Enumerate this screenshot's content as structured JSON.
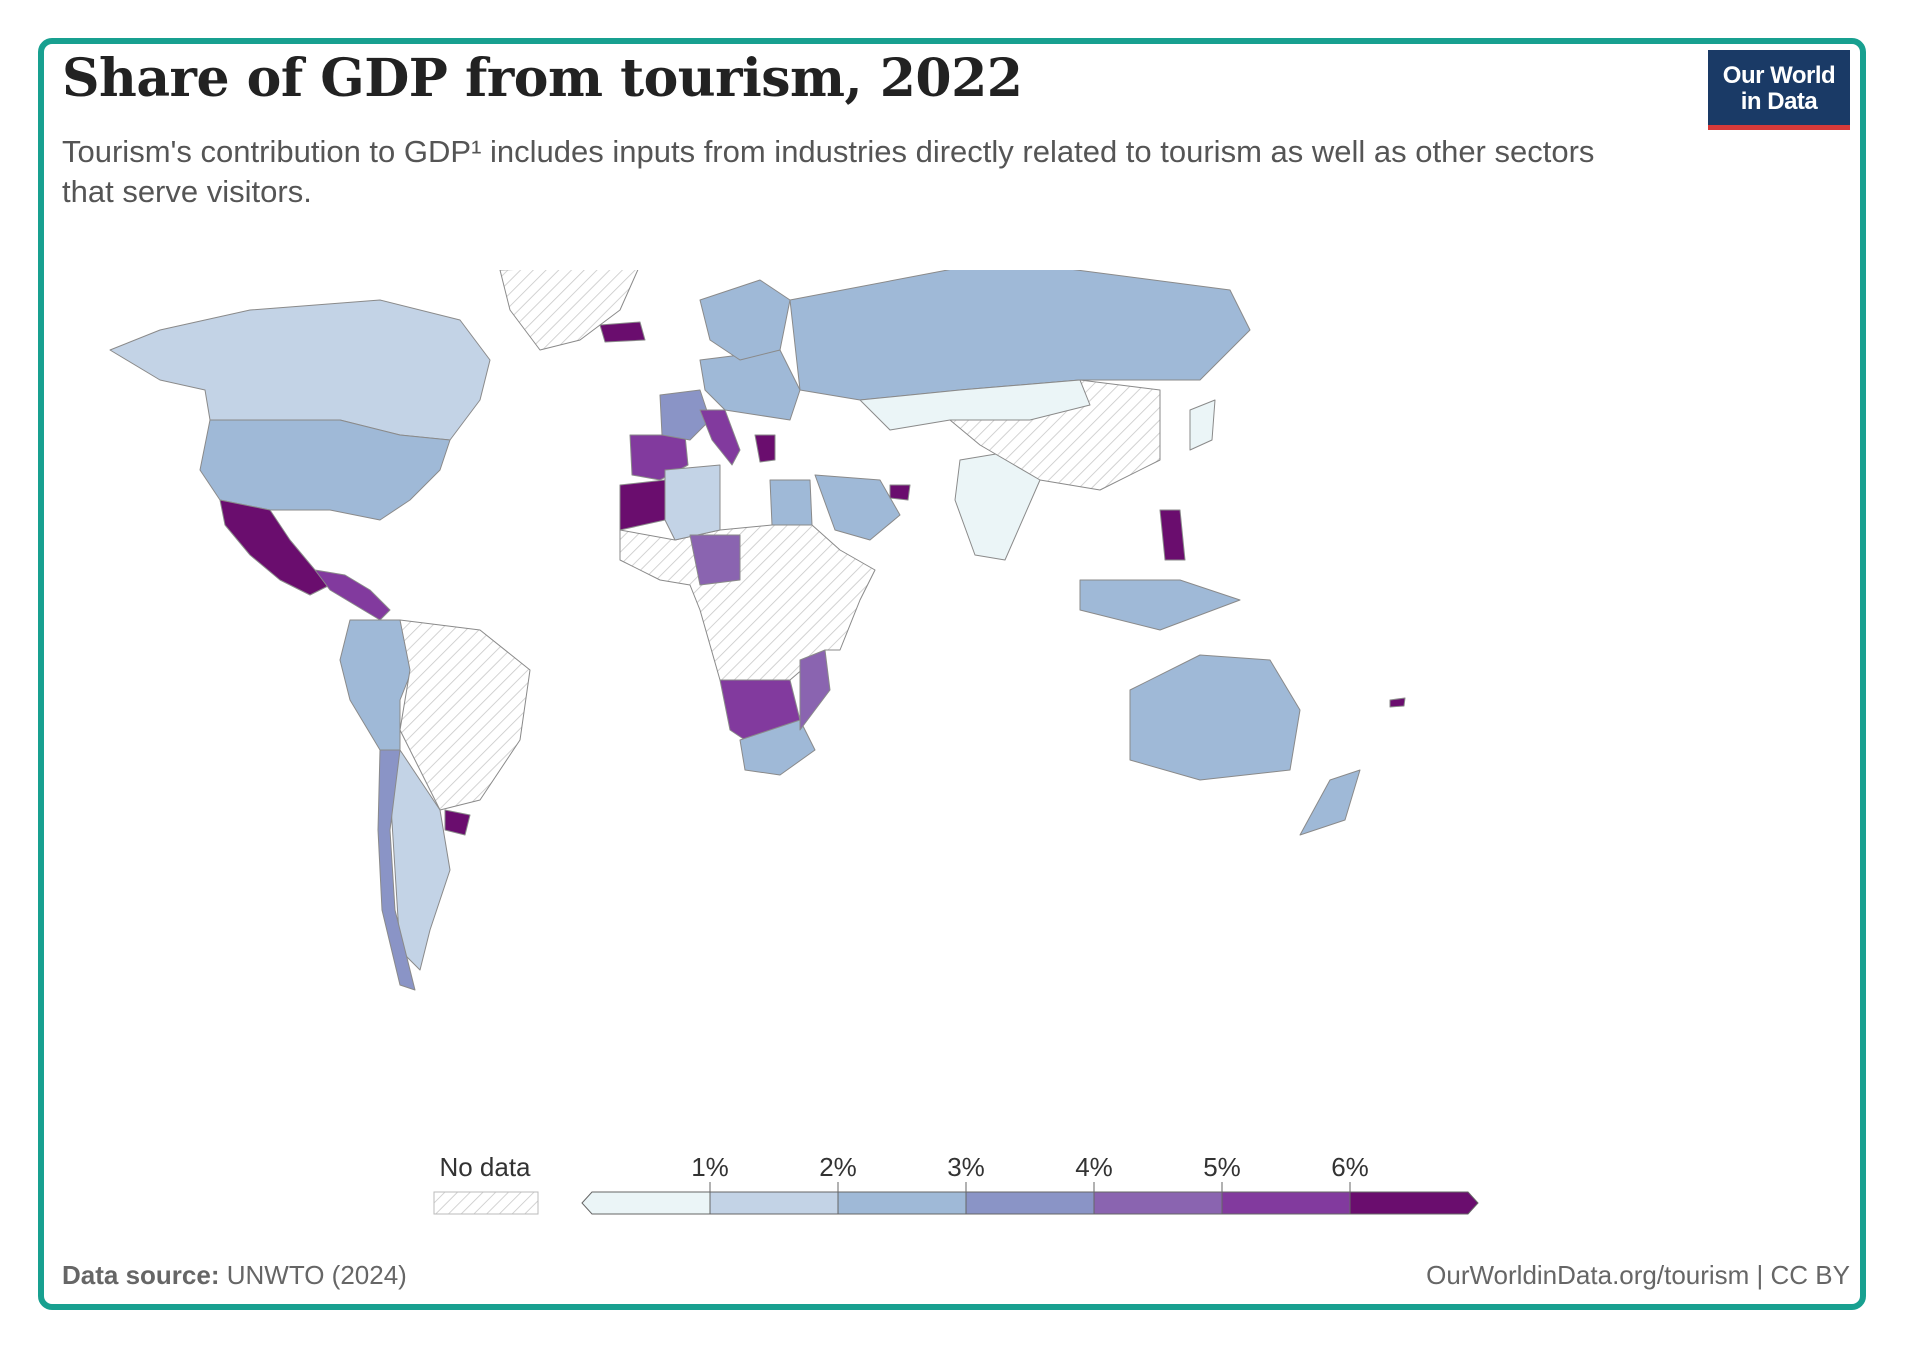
{
  "title": "Share of GDP from tourism, 2022",
  "subtitle": "Tourism's contribution to GDP¹ includes inputs from industries directly related to tourism as well as other sectors that serve visitors.",
  "logo": {
    "line1": "Our World",
    "line2": "in Data"
  },
  "footer": {
    "source_label": "Data source:",
    "source_value": "UNWTO (2024)",
    "url": "OurWorldinData.org/tourism | CC BY"
  },
  "legend": {
    "no_data_label": "No data",
    "no_data_pattern_color": "#c8c8c8",
    "ticks": [
      "1%",
      "2%",
      "3%",
      "4%",
      "5%",
      "6%"
    ],
    "bins": [
      {
        "range": [
          0,
          1
        ],
        "color": "#ebf5f7"
      },
      {
        "range": [
          1,
          2
        ],
        "color": "#c3d3e6"
      },
      {
        "range": [
          2,
          3
        ],
        "color": "#9fb9d7"
      },
      {
        "range": [
          3,
          4
        ],
        "color": "#8a94c6"
      },
      {
        "range": [
          4,
          5
        ],
        "color": "#8a64b0"
      },
      {
        "range": [
          5,
          6
        ],
        "color": "#823a9e"
      },
      {
        "range": [
          6,
          null
        ],
        "color": "#6a0d6e"
      }
    ]
  },
  "colors": {
    "frame": "#18a090",
    "logo_bg": "#1a3a66",
    "logo_accent": "#d73a3a",
    "ocean": "#ffffff",
    "border": "#8a8a8a"
  },
  "regions": [
    {
      "name": "Canada",
      "color": "#c3d3e6"
    },
    {
      "name": "United States",
      "color": "#9fb9d7"
    },
    {
      "name": "Mexico",
      "color": "#6a0d6e"
    },
    {
      "name": "Central America",
      "color": "#823a9e"
    },
    {
      "name": "Greenland",
      "color": "nodata"
    },
    {
      "name": "Colombia / Ecuador / Peru",
      "color": "#9fb9d7"
    },
    {
      "name": "Brazil / Bolivia / Paraguay",
      "color": "nodata"
    },
    {
      "name": "Argentina",
      "color": "#c3d3e6"
    },
    {
      "name": "Chile",
      "color": "#8a94c6"
    },
    {
      "name": "Uruguay",
      "color": "#6a0d6e"
    },
    {
      "name": "Iceland",
      "color": "#6a0d6e"
    },
    {
      "name": "Spain / Portugal",
      "color": "#823a9e"
    },
    {
      "name": "France",
      "color": "#8a94c6"
    },
    {
      "name": "Italy",
      "color": "#823a9e"
    },
    {
      "name": "Greece",
      "color": "#6a0d6e"
    },
    {
      "name": "Central Europe",
      "color": "#9fb9d7"
    },
    {
      "name": "Scandinavia",
      "color": "#9fb9d7"
    },
    {
      "name": "Russia",
      "color": "#9fb9d7"
    },
    {
      "name": "Morocco",
      "color": "#6a0d6e"
    },
    {
      "name": "Algeria",
      "color": "#c3d3e6"
    },
    {
      "name": "Egypt",
      "color": "#9fb9d7"
    },
    {
      "name": "Saudi Arabia",
      "color": "#9fb9d7"
    },
    {
      "name": "UAE",
      "color": "#6a0d6e"
    },
    {
      "name": "India",
      "color": "#ebf5f7"
    },
    {
      "name": "China",
      "color": "nodata"
    },
    {
      "name": "Mongolia / Kazakhstan",
      "color": "#ebf5f7"
    },
    {
      "name": "Japan",
      "color": "#ebf5f7"
    },
    {
      "name": "Philippines",
      "color": "#6a0d6e"
    },
    {
      "name": "Indonesia",
      "color": "#9fb9d7"
    },
    {
      "name": "Australia",
      "color": "#9fb9d7"
    },
    {
      "name": "New Zealand",
      "color": "#9fb9d7"
    },
    {
      "name": "Central Africa",
      "color": "#8a64b0"
    },
    {
      "name": "Namibia / Botswana",
      "color": "#823a9e"
    },
    {
      "name": "South Africa",
      "color": "#9fb9d7"
    },
    {
      "name": "Mozambique",
      "color": "#8a64b0"
    },
    {
      "name": "Rest of Africa",
      "color": "nodata"
    },
    {
      "name": "Fiji",
      "color": "#6a0d6e"
    }
  ]
}
